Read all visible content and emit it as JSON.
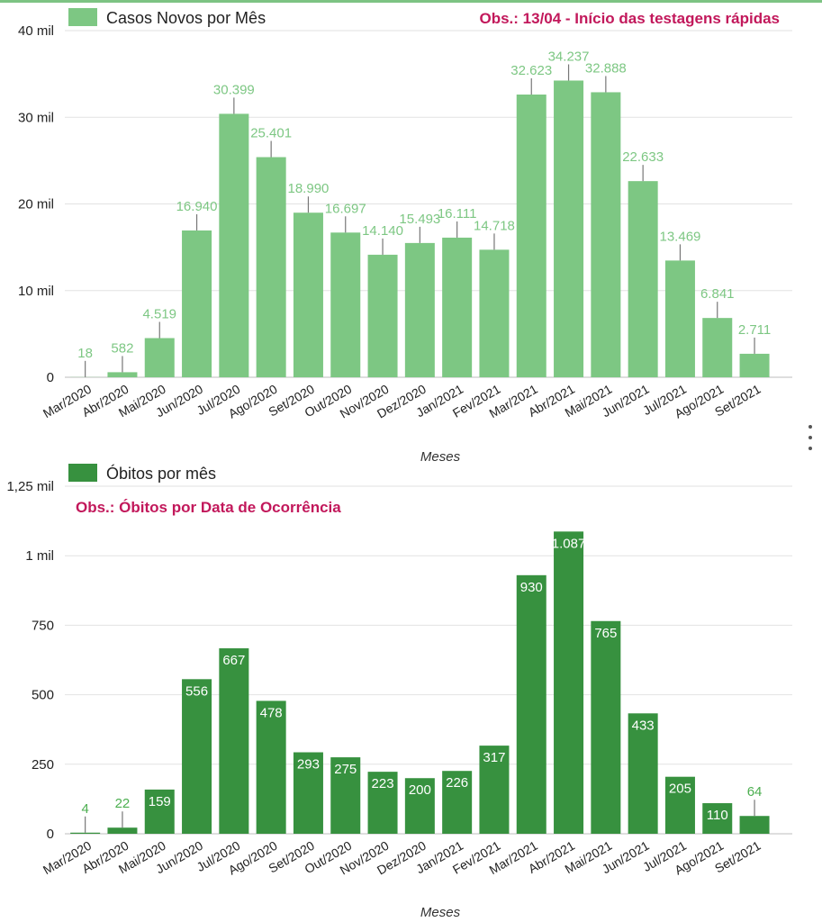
{
  "chart_data": [
    {
      "type": "bar",
      "legend": "Casos Novos por Mês",
      "note": "Obs.: 13/04 - Início das testagens rápidas",
      "xlabel": "Meses",
      "categories": [
        "Mar/2020",
        "Abr/2020",
        "Mai/2020",
        "Jun/2020",
        "Jul/2020",
        "Ago/2020",
        "Set/2020",
        "Out/2020",
        "Nov/2020",
        "Dez/2020",
        "Jan/2021",
        "Fev/2021",
        "Mar/2021",
        "Abr/2021",
        "Mai/2021",
        "Jun/2021",
        "Jul/2021",
        "Ago/2021",
        "Set/2021"
      ],
      "values": [
        18,
        582,
        4519,
        16940,
        30399,
        25401,
        18990,
        16697,
        14140,
        15493,
        16111,
        14718,
        32623,
        34237,
        32888,
        22633,
        13469,
        6841,
        2711
      ],
      "labels": [
        "18",
        "582",
        "4.519",
        "16.940",
        "30.399",
        "25.401",
        "18.990",
        "16.697",
        "14.140",
        "15.493",
        "16.111",
        "14.718",
        "32.623",
        "34.237",
        "32.888",
        "22.633",
        "13.469",
        "6.841",
        "2.711"
      ],
      "yticks": [
        0,
        10000,
        20000,
        30000,
        40000
      ],
      "ytick_labels": [
        "0",
        "10 mil",
        "20 mil",
        "30 mil",
        "40 mil"
      ],
      "ylim": [
        0,
        40000
      ],
      "bar_color": "#7dc783",
      "label_color": "#7dc783",
      "note_color": "#c2185b",
      "grid": true
    },
    {
      "type": "bar",
      "legend": "Óbitos por mês",
      "note": "Obs.: Óbitos por Data de Ocorrência",
      "xlabel": "Meses",
      "categories": [
        "Mar/2020",
        "Abr/2020",
        "Mai/2020",
        "Jun/2020",
        "Jul/2020",
        "Ago/2020",
        "Set/2020",
        "Out/2020",
        "Nov/2020",
        "Dez/2020",
        "Jan/2021",
        "Fev/2021",
        "Mar/2021",
        "Abr/2021",
        "Mai/2021",
        "Jun/2021",
        "Jul/2021",
        "Ago/2021",
        "Set/2021"
      ],
      "values": [
        4,
        22,
        159,
        556,
        667,
        478,
        293,
        275,
        223,
        200,
        226,
        317,
        930,
        1087,
        765,
        433,
        205,
        110,
        64
      ],
      "labels": [
        "4",
        "22",
        "159",
        "556",
        "667",
        "478",
        "293",
        "275",
        "223",
        "200",
        "226",
        "317",
        "930",
        "1.087",
        "765",
        "433",
        "205",
        "110",
        "64"
      ],
      "yticks": [
        0,
        250,
        500,
        750,
        1000,
        1250
      ],
      "ytick_labels": [
        "0",
        "250",
        "500",
        "750",
        "1 mil",
        "1,25 mil"
      ],
      "ylim": [
        0,
        1250
      ],
      "bar_color": "#37913f",
      "label_color": "#4caf50",
      "note_color": "#c2185b",
      "grid": true
    }
  ]
}
